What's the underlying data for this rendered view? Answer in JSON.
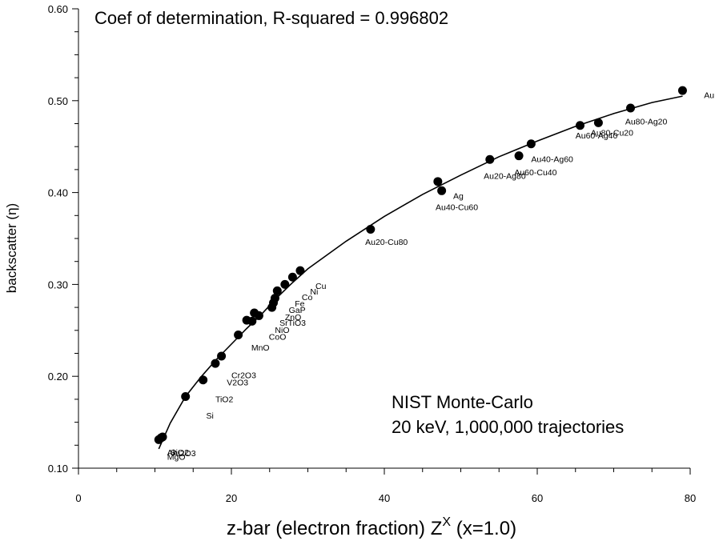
{
  "chart_data": {
    "type": "scatter",
    "annotation": "Coef of determination, R-squared = 0.996802",
    "info_line1": "NIST Monte-Carlo",
    "info_line2": "20 keV, 1,000,000 trajectories",
    "xlabel": "z-bar (electron fraction) Z",
    "xlabel_sup": "X",
    "xlabel_suffix": " (x=1.0)",
    "ylabel": "backscatter (η)",
    "xlim": [
      0,
      80
    ],
    "ylim": [
      0.1,
      0.6
    ],
    "x_ticks": [
      0,
      20,
      40,
      60,
      80
    ],
    "y_ticks": [
      0.1,
      0.2,
      0.3,
      0.4,
      0.5,
      0.6
    ],
    "y_tick_labels": [
      "0.10",
      "0.20",
      "0.30",
      "0.40",
      "0.50",
      "0.60"
    ],
    "y_minor_step": 0.025,
    "x_minor_step": 5,
    "grid": false,
    "legend": "none",
    "points": [
      {
        "x": 10.5,
        "y": 0.131
      },
      {
        "x": 10.8,
        "y": 0.133
      },
      {
        "x": 11.0,
        "y": 0.134
      },
      {
        "x": 14.0,
        "y": 0.178
      },
      {
        "x": 16.3,
        "y": 0.196
      },
      {
        "x": 17.9,
        "y": 0.214
      },
      {
        "x": 18.7,
        "y": 0.222
      },
      {
        "x": 20.9,
        "y": 0.245
      },
      {
        "x": 22.0,
        "y": 0.261
      },
      {
        "x": 22.7,
        "y": 0.26
      },
      {
        "x": 23.0,
        "y": 0.269
      },
      {
        "x": 23.6,
        "y": 0.266
      },
      {
        "x": 25.3,
        "y": 0.275
      },
      {
        "x": 25.5,
        "y": 0.28
      },
      {
        "x": 25.7,
        "y": 0.285
      },
      {
        "x": 26.0,
        "y": 0.293
      },
      {
        "x": 27.0,
        "y": 0.3
      },
      {
        "x": 28.0,
        "y": 0.308
      },
      {
        "x": 29.0,
        "y": 0.315
      },
      {
        "x": 38.2,
        "y": 0.36
      },
      {
        "x": 47.0,
        "y": 0.412
      },
      {
        "x": 47.5,
        "y": 0.402
      },
      {
        "x": 53.8,
        "y": 0.436
      },
      {
        "x": 57.6,
        "y": 0.44
      },
      {
        "x": 59.2,
        "y": 0.453
      },
      {
        "x": 65.6,
        "y": 0.473
      },
      {
        "x": 68.0,
        "y": 0.476
      },
      {
        "x": 72.2,
        "y": 0.492
      },
      {
        "x": 79.0,
        "y": 0.511
      }
    ],
    "fit_curve": [
      {
        "x": 10.5,
        "y": 0.121
      },
      {
        "x": 12,
        "y": 0.149
      },
      {
        "x": 14,
        "y": 0.178
      },
      {
        "x": 16,
        "y": 0.199
      },
      {
        "x": 18,
        "y": 0.218
      },
      {
        "x": 20,
        "y": 0.235
      },
      {
        "x": 22,
        "y": 0.252
      },
      {
        "x": 24,
        "y": 0.268
      },
      {
        "x": 26,
        "y": 0.286
      },
      {
        "x": 28,
        "y": 0.302
      },
      {
        "x": 30,
        "y": 0.317
      },
      {
        "x": 35,
        "y": 0.347
      },
      {
        "x": 40,
        "y": 0.374
      },
      {
        "x": 45,
        "y": 0.398
      },
      {
        "x": 50,
        "y": 0.419
      },
      {
        "x": 55,
        "y": 0.439
      },
      {
        "x": 60,
        "y": 0.456
      },
      {
        "x": 65,
        "y": 0.472
      },
      {
        "x": 70,
        "y": 0.486
      },
      {
        "x": 75,
        "y": 0.498
      },
      {
        "x": 79,
        "y": 0.505
      }
    ],
    "point_labels": [
      {
        "text": "Au",
        "x": 81.8,
        "y": 0.503
      },
      {
        "text": "Au80-Ag20",
        "x": 71.5,
        "y": 0.474
      },
      {
        "text": "Au80-Cu20",
        "x": 67.0,
        "y": 0.462
      },
      {
        "text": "Au60-Ag40",
        "x": 65.0,
        "y": 0.459
      },
      {
        "text": "Au40-Ag60",
        "x": 59.2,
        "y": 0.433
      },
      {
        "text": "Au60-Cu40",
        "x": 57.0,
        "y": 0.419
      },
      {
        "text": "Au20-Ag80",
        "x": 53.0,
        "y": 0.415
      },
      {
        "text": "Ag",
        "x": 49.0,
        "y": 0.393
      },
      {
        "text": "Au40-Cu60",
        "x": 46.7,
        "y": 0.381
      },
      {
        "text": "Au20-Cu80",
        "x": 37.5,
        "y": 0.343
      },
      {
        "text": "Cu",
        "x": 31.0,
        "y": 0.295
      },
      {
        "text": "Ni",
        "x": 30.3,
        "y": 0.289
      },
      {
        "text": "Co",
        "x": 29.2,
        "y": 0.283
      },
      {
        "text": "Fe",
        "x": 28.3,
        "y": 0.276
      },
      {
        "text": "GaP",
        "x": 27.5,
        "y": 0.269
      },
      {
        "text": "ZnO",
        "x": 27.0,
        "y": 0.261
      },
      {
        "text": "SrTiO3",
        "x": 26.3,
        "y": 0.255
      },
      {
        "text": "NiO",
        "x": 25.7,
        "y": 0.247
      },
      {
        "text": "CoO",
        "x": 24.9,
        "y": 0.24
      },
      {
        "text": "MnO",
        "x": 22.6,
        "y": 0.228
      },
      {
        "text": "Cr2O3",
        "x": 20.0,
        "y": 0.198
      },
      {
        "text": "V2O3",
        "x": 19.4,
        "y": 0.19
      },
      {
        "text": "TiO2",
        "x": 17.9,
        "y": 0.172
      },
      {
        "text": "Si",
        "x": 16.7,
        "y": 0.154
      },
      {
        "text": "Al",
        "x": 11.6,
        "y": 0.114
      },
      {
        "text": "SiO2",
        "x": 12.0,
        "y": 0.114
      },
      {
        "text": "Al2O3",
        "x": 12.3,
        "y": 0.113
      },
      {
        "text": "MgO",
        "x": 11.6,
        "y": 0.109
      }
    ]
  }
}
